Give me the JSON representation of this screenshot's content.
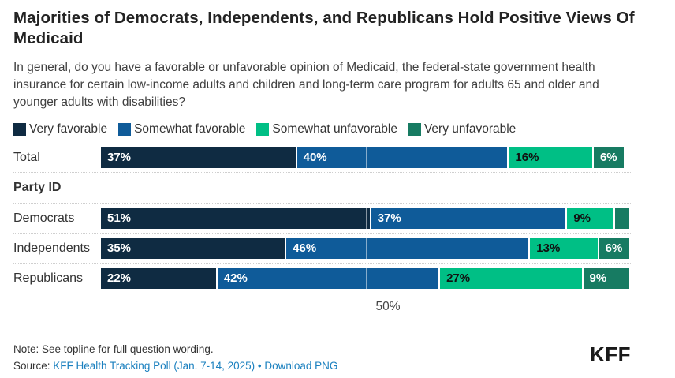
{
  "header": {
    "title": "Majorities of Democrats, Independents, and Republicans Hold Positive Views Of Medicaid",
    "subtitle": "In general, do you have a favorable or unfavorable opinion of Medicaid, the federal-state government health insurance for certain low-income adults and children and long-term care program for adults 65 and older and younger adults with disabilities?"
  },
  "chart_data": {
    "type": "bar",
    "stacked": true,
    "orientation": "horizontal",
    "xlim": [
      0,
      100
    ],
    "grid": "single vertical gridline at 50%, white, drawn over bars",
    "legend_position": "top",
    "x_ticks": [
      {
        "value": 50,
        "label": "50%"
      }
    ],
    "series": [
      {
        "name": "Very favorable",
        "color": "#0f2b42",
        "label_color": "#ffffff"
      },
      {
        "name": "Somewhat favorable",
        "color": "#0f5b99",
        "label_color": "#ffffff"
      },
      {
        "name": "Somewhat unfavorable",
        "color": "#00bf85",
        "label_color": "#111111"
      },
      {
        "name": "Very unfavorable",
        "color": "#177b62",
        "label_color": "#ffffff"
      }
    ],
    "groups": [
      {
        "kind": "bar",
        "label": "Total",
        "values": [
          37,
          40,
          16,
          6
        ],
        "value_labels": [
          "37%",
          "40%",
          "16%",
          "6%"
        ]
      },
      {
        "kind": "section",
        "label": "Party ID"
      },
      {
        "kind": "bar",
        "label": "Democrats",
        "values": [
          51,
          37,
          9,
          3
        ],
        "value_labels": [
          "51%",
          "37%",
          "9%",
          ""
        ]
      },
      {
        "kind": "bar",
        "label": "Independents",
        "values": [
          35,
          46,
          13,
          6
        ],
        "value_labels": [
          "35%",
          "46%",
          "13%",
          "6%"
        ]
      },
      {
        "kind": "bar",
        "label": "Republicans",
        "values": [
          22,
          42,
          27,
          9
        ],
        "value_labels": [
          "22%",
          "42%",
          "27%",
          "9%"
        ]
      }
    ]
  },
  "footer": {
    "note": "Note: See topline for full question wording.",
    "source_prefix": "Source: ",
    "source_link_label": "KFF Health Tracking Poll (Jan. 7-14, 2025)",
    "separator": " • ",
    "download_label": "Download PNG",
    "logo_text": "KFF",
    "link_color": "#1b80bf"
  }
}
